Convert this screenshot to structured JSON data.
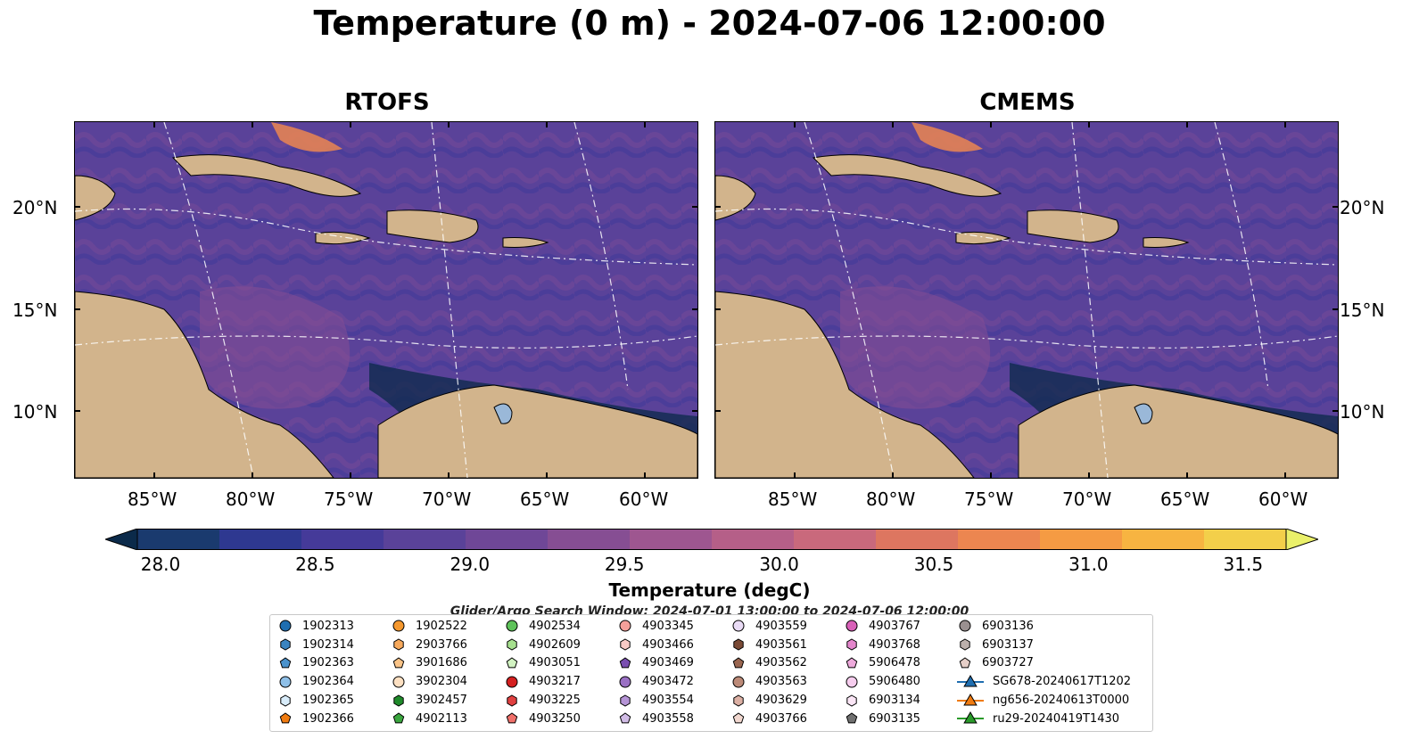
{
  "title": "Temperature (0 m) - 2024-07-06 12:00:00",
  "panels": [
    {
      "title": "RTOFS"
    },
    {
      "title": "CMEMS"
    }
  ],
  "axes": {
    "lat_ticks": [
      "20°N",
      "15°N",
      "10°N"
    ],
    "lon_ticks": [
      "85°W",
      "80°W",
      "75°W",
      "70°W",
      "65°W",
      "60°W"
    ]
  },
  "colorbar": {
    "label": "Temperature (degC)",
    "ticks": [
      "28.0",
      "28.5",
      "29.0",
      "29.5",
      "30.0",
      "30.5",
      "31.0",
      "31.5"
    ],
    "colors": [
      "#0b2a4a",
      "#1a3a6e",
      "#2e3890",
      "#453a99",
      "#5a4299",
      "#6f4797",
      "#864e93",
      "#9e5690",
      "#b55f88",
      "#c9697c",
      "#dd7660",
      "#ec8650",
      "#f59b43",
      "#f7b441",
      "#f3cf4a",
      "#eaf06a"
    ]
  },
  "search_window": "Glider/Argo Search Window: 2024-07-01 13:00:00 to 2024-07-06 12:00:00",
  "legend": {
    "columns": [
      [
        {
          "label": "1902313",
          "marker": "circle",
          "color": "#1f6eb0"
        },
        {
          "label": "1902314",
          "marker": "hexagon",
          "color": "#3a84c0"
        },
        {
          "label": "1902363",
          "marker": "pentagon",
          "color": "#4a92cc"
        },
        {
          "label": "1902364",
          "marker": "circle",
          "color": "#8fc0e8"
        },
        {
          "label": "1902365",
          "marker": "hexagon",
          "color": "#d8ecfa"
        },
        {
          "label": "1902366",
          "marker": "pentagon",
          "color": "#f07b10"
        }
      ],
      [
        {
          "label": "1902522",
          "marker": "circle",
          "color": "#f5982e"
        },
        {
          "label": "2903766",
          "marker": "hexagon",
          "color": "#f7a95c"
        },
        {
          "label": "3901686",
          "marker": "pentagon",
          "color": "#fac488"
        },
        {
          "label": "3902304",
          "marker": "circle",
          "color": "#fde0c2"
        },
        {
          "label": "3902457",
          "marker": "hexagon",
          "color": "#1f8a2a"
        },
        {
          "label": "4902113",
          "marker": "pentagon",
          "color": "#3aa63e"
        }
      ],
      [
        {
          "label": "4902534",
          "marker": "circle",
          "color": "#5ec25a"
        },
        {
          "label": "4902609",
          "marker": "hexagon",
          "color": "#a6e08e"
        },
        {
          "label": "4903051",
          "marker": "pentagon",
          "color": "#d2f3c2"
        },
        {
          "label": "4903217",
          "marker": "circle",
          "color": "#d42020"
        },
        {
          "label": "4903225",
          "marker": "hexagon",
          "color": "#e04040"
        },
        {
          "label": "4903250",
          "marker": "pentagon",
          "color": "#f0706a"
        }
      ],
      [
        {
          "label": "4903345",
          "marker": "circle",
          "color": "#f5a09a"
        },
        {
          "label": "4903466",
          "marker": "hexagon",
          "color": "#f8cac6"
        },
        {
          "label": "4903469",
          "marker": "pentagon",
          "color": "#7a4fb0"
        },
        {
          "label": "4903472",
          "marker": "circle",
          "color": "#9a70c4"
        },
        {
          "label": "4903554",
          "marker": "hexagon",
          "color": "#b594d6"
        },
        {
          "label": "4903558",
          "marker": "pentagon",
          "color": "#d1bce6"
        }
      ],
      [
        {
          "label": "4903559",
          "marker": "circle",
          "color": "#eadcf6"
        },
        {
          "label": "4903561",
          "marker": "hexagon",
          "color": "#7a4a36"
        },
        {
          "label": "4903562",
          "marker": "pentagon",
          "color": "#9a6650"
        },
        {
          "label": "4903563",
          "marker": "circle",
          "color": "#bc8a78"
        },
        {
          "label": "4903629",
          "marker": "hexagon",
          "color": "#dcb0a4"
        },
        {
          "label": "4903766",
          "marker": "pentagon",
          "color": "#f2d8d0"
        }
      ],
      [
        {
          "label": "4903767",
          "marker": "circle",
          "color": "#d860b8"
        },
        {
          "label": "4903768",
          "marker": "hexagon",
          "color": "#e486cc"
        },
        {
          "label": "5906478",
          "marker": "pentagon",
          "color": "#eeaadc"
        },
        {
          "label": "5906480",
          "marker": "circle",
          "color": "#f6cdee"
        },
        {
          "label": "6903134",
          "marker": "hexagon",
          "color": "#fbe6f6"
        },
        {
          "label": "6903135",
          "marker": "pentagon",
          "color": "#707070"
        }
      ],
      [
        {
          "label": "6903136",
          "marker": "circle",
          "color": "#9a9090"
        },
        {
          "label": "6903137",
          "marker": "hexagon",
          "color": "#bcb0ac"
        },
        {
          "label": "6903727",
          "marker": "pentagon",
          "color": "#e6cfc8"
        },
        {
          "label": "SG678-20240617T1202",
          "marker": "triangle-line",
          "color": "#1f6eb0"
        },
        {
          "label": "ng656-20240613T0000",
          "marker": "triangle-line",
          "color": "#f07b10"
        },
        {
          "label": "ru29-20240419T1430",
          "marker": "triangle-line",
          "color": "#2a9a2a"
        }
      ]
    ]
  }
}
